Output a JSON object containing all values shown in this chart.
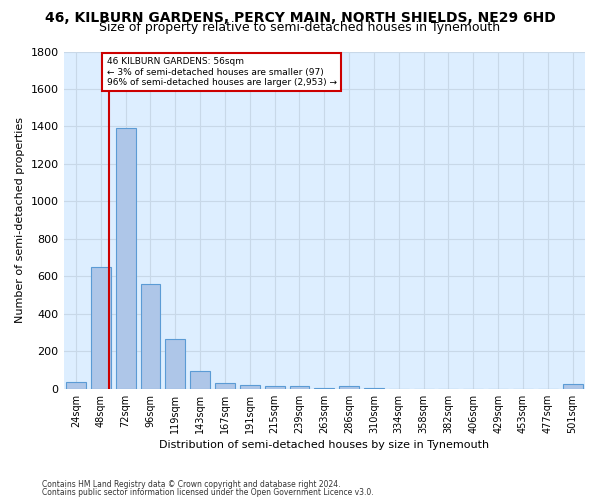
{
  "title_line1": "46, KILBURN GARDENS, PERCY MAIN, NORTH SHIELDS, NE29 6HD",
  "title_line2": "Size of property relative to semi-detached houses in Tynemouth",
  "xlabel": "Distribution of semi-detached houses by size in Tynemouth",
  "ylabel": "Number of semi-detached properties",
  "categories": [
    "24sqm",
    "48sqm",
    "72sqm",
    "96sqm",
    "119sqm",
    "143sqm",
    "167sqm",
    "191sqm",
    "215sqm",
    "239sqm",
    "263sqm",
    "286sqm",
    "310sqm",
    "334sqm",
    "358sqm",
    "382sqm",
    "406sqm",
    "429sqm",
    "453sqm",
    "477sqm",
    "501sqm"
  ],
  "values": [
    35,
    650,
    1390,
    560,
    265,
    95,
    30,
    22,
    17,
    16,
    7,
    15,
    2,
    0,
    0,
    0,
    0,
    0,
    0,
    0,
    25
  ],
  "bar_color": "#aec6e8",
  "bar_edge_color": "#5b9bd5",
  "annotation_line1": "46 KILBURN GARDENS: 56sqm",
  "annotation_line2": "← 3% of semi-detached houses are smaller (97)",
  "annotation_line3": "96% of semi-detached houses are larger (2,953) →",
  "annotation_box_facecolor": "#ffffff",
  "annotation_box_edgecolor": "#cc0000",
  "vline_color": "#cc0000",
  "ylim": [
    0,
    1800
  ],
  "yticks": [
    0,
    200,
    400,
    600,
    800,
    1000,
    1200,
    1400,
    1600,
    1800
  ],
  "axes_bg_color": "#ddeeff",
  "grid_color": "#c8d8e8",
  "title_fontsize": 10,
  "subtitle_fontsize": 9,
  "footnote1": "Contains HM Land Registry data © Crown copyright and database right 2024.",
  "footnote2": "Contains public sector information licensed under the Open Government Licence v3.0.",
  "bar_width": 0.8
}
